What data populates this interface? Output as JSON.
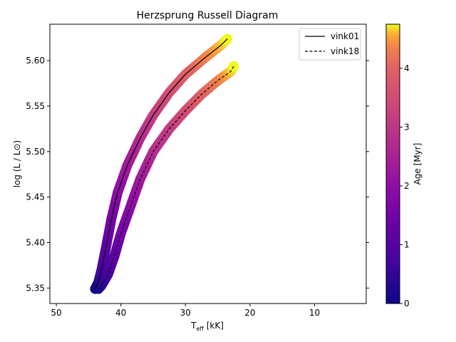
{
  "chart_data": {
    "type": "line",
    "title": "Herzsprung Russell Diagram",
    "xlabel_main": "T",
    "xlabel_sub": "eff",
    "xlabel_unit": " [kK]",
    "ylabel": "log (L / L⊙)",
    "xlim": [
      51,
      2
    ],
    "ylim": [
      5.333,
      5.64
    ],
    "x_inverted": true,
    "grid": false,
    "legend_position": "top-right",
    "x_ticks": [
      50,
      40,
      30,
      20,
      10
    ],
    "y_ticks": [
      5.35,
      5.4,
      5.45,
      5.5,
      5.55,
      5.6
    ],
    "y_tick_labels": [
      "5.35",
      "5.40",
      "5.45",
      "5.50",
      "5.55",
      "5.60"
    ],
    "series": [
      {
        "name": "vink01",
        "line_style": "solid",
        "points": [
          {
            "teff": 44.0,
            "logL": 5.349,
            "age": 0.0
          },
          {
            "teff": 43.5,
            "logL": 5.356,
            "age": 0.3
          },
          {
            "teff": 43.0,
            "logL": 5.37,
            "age": 0.7
          },
          {
            "teff": 42.3,
            "logL": 5.395,
            "age": 1.1
          },
          {
            "teff": 41.5,
            "logL": 5.425,
            "age": 1.5
          },
          {
            "teff": 40.5,
            "logL": 5.455,
            "age": 1.9
          },
          {
            "teff": 39.0,
            "logL": 5.485,
            "age": 2.3
          },
          {
            "teff": 37.0,
            "logL": 5.515,
            "age": 2.7
          },
          {
            "teff": 35.0,
            "logL": 5.54,
            "age": 3.1
          },
          {
            "teff": 32.5,
            "logL": 5.565,
            "age": 3.5
          },
          {
            "teff": 30.0,
            "logL": 5.585,
            "age": 3.9
          },
          {
            "teff": 27.0,
            "logL": 5.603,
            "age": 4.3
          },
          {
            "teff": 24.5,
            "logL": 5.617,
            "age": 4.6
          },
          {
            "teff": 23.5,
            "logL": 5.624,
            "age": 4.75
          }
        ]
      },
      {
        "name": "vink18",
        "line_style": "dashed",
        "points": [
          {
            "teff": 43.5,
            "logL": 5.349,
            "age": 0.0
          },
          {
            "teff": 43.0,
            "logL": 5.353,
            "age": 0.3
          },
          {
            "teff": 42.0,
            "logL": 5.365,
            "age": 0.7
          },
          {
            "teff": 41.0,
            "logL": 5.385,
            "age": 1.1
          },
          {
            "teff": 40.0,
            "logL": 5.41,
            "age": 1.5
          },
          {
            "teff": 38.5,
            "logL": 5.44,
            "age": 1.9
          },
          {
            "teff": 37.0,
            "logL": 5.47,
            "age": 2.3
          },
          {
            "teff": 35.0,
            "logL": 5.5,
            "age": 2.7
          },
          {
            "teff": 32.5,
            "logL": 5.525,
            "age": 3.1
          },
          {
            "teff": 30.0,
            "logL": 5.545,
            "age": 3.5
          },
          {
            "teff": 27.5,
            "logL": 5.563,
            "age": 3.9
          },
          {
            "teff": 25.0,
            "logL": 5.578,
            "age": 4.3
          },
          {
            "teff": 23.0,
            "logL": 5.588,
            "age": 4.6
          },
          {
            "teff": 22.5,
            "logL": 5.594,
            "age": 4.75
          }
        ]
      }
    ],
    "colorbar": {
      "label": "Age [Myr]",
      "range": [
        0,
        4.75
      ],
      "ticks": [
        0,
        1,
        2,
        3,
        4
      ],
      "colormap": "plasma"
    }
  }
}
